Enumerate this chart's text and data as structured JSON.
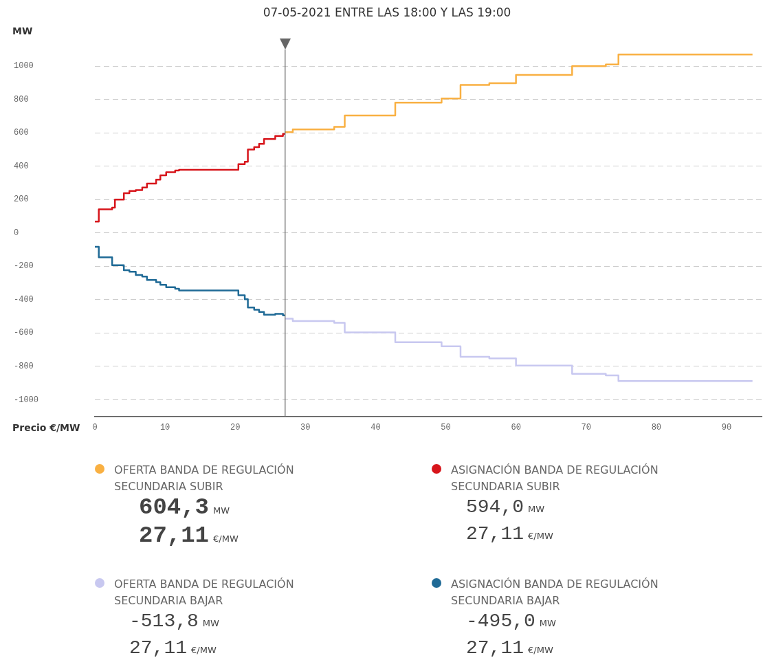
{
  "chart_data": {
    "type": "step",
    "title": "07-05-2021 ENTRE LAS 18:00 Y LAS 19:00",
    "xlabel": "Precio €/MW",
    "ylabel": "MW",
    "xlim": [
      0,
      95
    ],
    "xticks": [
      0,
      10,
      20,
      30,
      40,
      50,
      60,
      70,
      80,
      90
    ],
    "ylim": [
      -1100,
      1100
    ],
    "yticks": [
      -1000,
      -800,
      -600,
      -400,
      -200,
      0,
      200,
      400,
      600,
      800,
      1000
    ],
    "grid": "y",
    "legend": "bottom",
    "marker": "none",
    "line_style": "solid",
    "ref_lines": [
      {
        "axis": "x",
        "value": 27.11,
        "color": "#666666"
      }
    ],
    "annotations": [
      "604,3 MW",
      "27,11 €/MW",
      "594,0 MW",
      "27,11 €/MW",
      "-513,8 MW",
      "27,11 €/MW",
      "-495,0 MW",
      "27,11 €/MW"
    ],
    "series": [
      {
        "name": "OFERTA BANDA DE REGULACIÓN SECUNDARIA SUBIR",
        "color": "#f9b042",
        "x": [
          27.11,
          28.2,
          34.1,
          35.6,
          42.8,
          49.4,
          52.1,
          56.2,
          60,
          68,
          72.8,
          74.6,
          93.7
        ],
        "values": [
          604,
          621,
          636,
          704,
          782,
          806,
          888,
          898,
          947,
          1000,
          1010,
          1070,
          1070
        ]
      },
      {
        "name": "ASIGNACIÓN BANDA DE REGULACIÓN SECUNDARIA SUBIR",
        "color": "#d7151b",
        "x": [
          0,
          0.56,
          2.46,
          2.86,
          4.13,
          4.92,
          5.83,
          6.75,
          7.42,
          8.73,
          9.33,
          10.16,
          11.44,
          12,
          20.45,
          21.36,
          21.8,
          22.7,
          23.4,
          24.1,
          25.7,
          26.8,
          27.11
        ],
        "values": [
          68,
          141,
          152,
          200,
          238,
          252,
          257,
          272,
          296,
          320,
          345,
          364,
          374,
          379,
          413,
          427,
          500,
          515,
          534,
          563,
          582,
          594,
          594
        ]
      },
      {
        "name": "OFERTA BANDA DE REGULACIÓN SECUNDARIA BAJAR",
        "color": "#c8c8f0",
        "x": [
          27.11,
          28.2,
          34.1,
          35.6,
          42.8,
          49.4,
          52.1,
          56.2,
          60,
          68,
          72.8,
          74.6,
          93.7
        ],
        "values": [
          -514,
          -529,
          -539,
          -597,
          -655,
          -680,
          -743,
          -752,
          -796,
          -845,
          -854,
          -888,
          -888
        ]
      },
      {
        "name": "ASIGNACIÓN BANDA DE REGULACIÓN SECUNDARIA BAJAR",
        "color": "#1f6a96",
        "x": [
          0,
          0.56,
          2.46,
          2.86,
          4.13,
          4.92,
          5.83,
          6.75,
          7.42,
          8.73,
          9.33,
          10.16,
          11.44,
          12,
          20.45,
          21.36,
          21.8,
          22.7,
          23.4,
          24.1,
          25.7,
          26.8,
          27.11
        ],
        "values": [
          -83,
          -146,
          -194,
          -194,
          -223,
          -233,
          -252,
          -262,
          -282,
          -296,
          -311,
          -325,
          -335,
          -345,
          -374,
          -398,
          -447,
          -461,
          -474,
          -490,
          -485,
          -495,
          -495
        ]
      }
    ]
  }
}
